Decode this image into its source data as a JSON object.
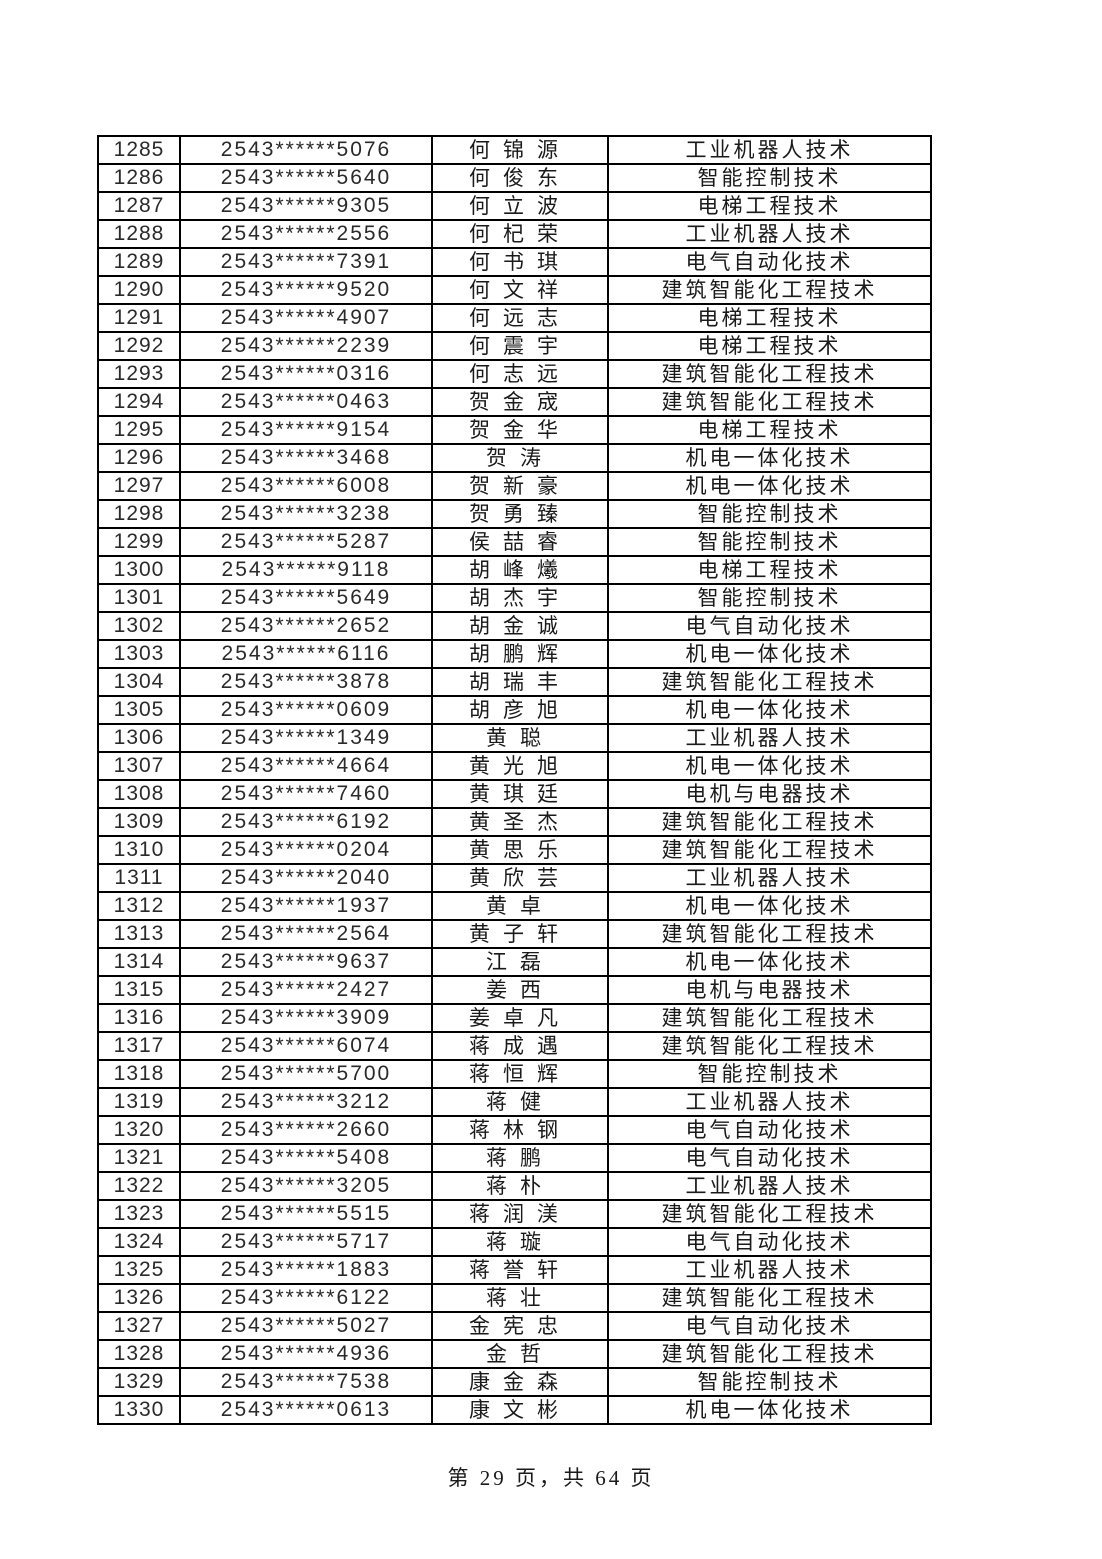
{
  "document": {
    "footer": "第 29 页，共 64 页"
  },
  "table": {
    "rows": [
      {
        "no": "1285",
        "id": "2543******5076",
        "name": "何锦源",
        "major": "工业机器人技术"
      },
      {
        "no": "1286",
        "id": "2543******5640",
        "name": "何俊东",
        "major": "智能控制技术"
      },
      {
        "no": "1287",
        "id": "2543******9305",
        "name": "何立波",
        "major": "电梯工程技术"
      },
      {
        "no": "1288",
        "id": "2543******2556",
        "name": "何杞荣",
        "major": "工业机器人技术"
      },
      {
        "no": "1289",
        "id": "2543******7391",
        "name": "何书琪",
        "major": "电气自动化技术"
      },
      {
        "no": "1290",
        "id": "2543******9520",
        "name": "何文祥",
        "major": "建筑智能化工程技术"
      },
      {
        "no": "1291",
        "id": "2543******4907",
        "name": "何远志",
        "major": "电梯工程技术"
      },
      {
        "no": "1292",
        "id": "2543******2239",
        "name": "何震宇",
        "major": "电梯工程技术"
      },
      {
        "no": "1293",
        "id": "2543******0316",
        "name": "何志远",
        "major": "建筑智能化工程技术"
      },
      {
        "no": "1294",
        "id": "2543******0463",
        "name": "贺金宬",
        "major": "建筑智能化工程技术"
      },
      {
        "no": "1295",
        "id": "2543******9154",
        "name": "贺金华",
        "major": "电梯工程技术"
      },
      {
        "no": "1296",
        "id": "2543******3468",
        "name": "贺涛",
        "major": "机电一体化技术"
      },
      {
        "no": "1297",
        "id": "2543******6008",
        "name": "贺新豪",
        "major": "机电一体化技术"
      },
      {
        "no": "1298",
        "id": "2543******3238",
        "name": "贺勇臻",
        "major": "智能控制技术"
      },
      {
        "no": "1299",
        "id": "2543******5287",
        "name": "侯喆睿",
        "major": "智能控制技术"
      },
      {
        "no": "1300",
        "id": "2543******9118",
        "name": "胡峰爔",
        "major": "电梯工程技术"
      },
      {
        "no": "1301",
        "id": "2543******5649",
        "name": "胡杰宇",
        "major": "智能控制技术"
      },
      {
        "no": "1302",
        "id": "2543******2652",
        "name": "胡金诚",
        "major": "电气自动化技术"
      },
      {
        "no": "1303",
        "id": "2543******6116",
        "name": "胡鹏辉",
        "major": "机电一体化技术"
      },
      {
        "no": "1304",
        "id": "2543******3878",
        "name": "胡瑞丰",
        "major": "建筑智能化工程技术"
      },
      {
        "no": "1305",
        "id": "2543******0609",
        "name": "胡彦旭",
        "major": "机电一体化技术"
      },
      {
        "no": "1306",
        "id": "2543******1349",
        "name": "黄聪",
        "major": "工业机器人技术"
      },
      {
        "no": "1307",
        "id": "2543******4664",
        "name": "黄光旭",
        "major": "机电一体化技术"
      },
      {
        "no": "1308",
        "id": "2543******7460",
        "name": "黄琪廷",
        "major": "电机与电器技术"
      },
      {
        "no": "1309",
        "id": "2543******6192",
        "name": "黄圣杰",
        "major": "建筑智能化工程技术"
      },
      {
        "no": "1310",
        "id": "2543******0204",
        "name": "黄思乐",
        "major": "建筑智能化工程技术"
      },
      {
        "no": "1311",
        "id": "2543******2040",
        "name": "黄欣芸",
        "major": "工业机器人技术"
      },
      {
        "no": "1312",
        "id": "2543******1937",
        "name": "黄卓",
        "major": "机电一体化技术"
      },
      {
        "no": "1313",
        "id": "2543******2564",
        "name": "黄子轩",
        "major": "建筑智能化工程技术"
      },
      {
        "no": "1314",
        "id": "2543******9637",
        "name": "江磊",
        "major": "机电一体化技术"
      },
      {
        "no": "1315",
        "id": "2543******2427",
        "name": "姜西",
        "major": "电机与电器技术"
      },
      {
        "no": "1316",
        "id": "2543******3909",
        "name": "姜卓凡",
        "major": "建筑智能化工程技术"
      },
      {
        "no": "1317",
        "id": "2543******6074",
        "name": "蒋成遇",
        "major": "建筑智能化工程技术"
      },
      {
        "no": "1318",
        "id": "2543******5700",
        "name": "蒋恒辉",
        "major": "智能控制技术"
      },
      {
        "no": "1319",
        "id": "2543******3212",
        "name": "蒋健",
        "major": "工业机器人技术"
      },
      {
        "no": "1320",
        "id": "2543******2660",
        "name": "蒋林钢",
        "major": "电气自动化技术"
      },
      {
        "no": "1321",
        "id": "2543******5408",
        "name": "蒋鹏",
        "major": "电气自动化技术"
      },
      {
        "no": "1322",
        "id": "2543******3205",
        "name": "蒋朴",
        "major": "工业机器人技术"
      },
      {
        "no": "1323",
        "id": "2543******5515",
        "name": "蒋润渼",
        "major": "建筑智能化工程技术"
      },
      {
        "no": "1324",
        "id": "2543******5717",
        "name": "蒋璇",
        "major": "电气自动化技术"
      },
      {
        "no": "1325",
        "id": "2543******1883",
        "name": "蒋誉轩",
        "major": "工业机器人技术"
      },
      {
        "no": "1326",
        "id": "2543******6122",
        "name": "蒋壮",
        "major": "建筑智能化工程技术"
      },
      {
        "no": "1327",
        "id": "2543******5027",
        "name": "金宪忠",
        "major": "电气自动化技术"
      },
      {
        "no": "1328",
        "id": "2543******4936",
        "name": "金哲",
        "major": "建筑智能化工程技术"
      },
      {
        "no": "1329",
        "id": "2543******7538",
        "name": "康金森",
        "major": "智能控制技术"
      },
      {
        "no": "1330",
        "id": "2543******0613",
        "name": "康文彬",
        "major": "机电一体化技术"
      }
    ]
  }
}
